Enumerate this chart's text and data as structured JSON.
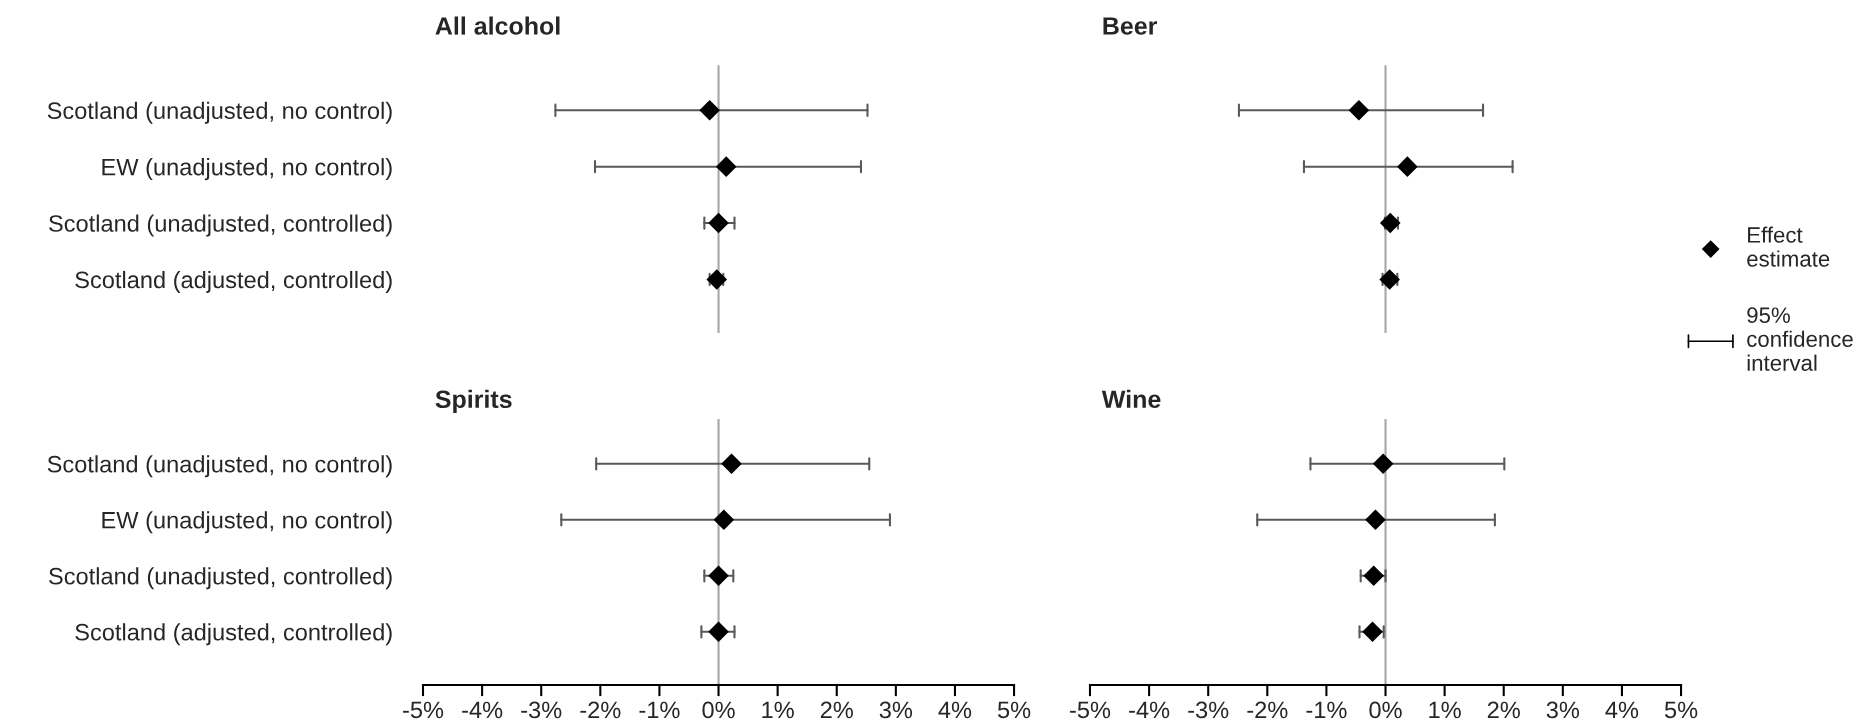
{
  "chart_data": [
    {
      "type": "scatter",
      "title": "All alcohol",
      "orientation": "horizontal",
      "categories": [
        "Scotland (unadjusted, no control)",
        "EW (unadjusted, no control)",
        "Scotland (unadjusted, controlled)",
        "Scotland (adjusted, controlled)"
      ],
      "tick_labels": "y",
      "marker": "diamond",
      "xlim": [
        -5,
        5
      ],
      "series": [
        {
          "color": "#000000",
          "values": [
            -0.15,
            0.13,
            0,
            -0.03
          ],
          "errors": [
            [
              -2.76,
              2.52
            ],
            [
              -2.09,
              2.41
            ],
            [
              -0.24,
              0.27
            ],
            [
              -0.15,
              0.08
            ]
          ]
        }
      ],
      "ref_lines": [
        {
          "axis": "x",
          "value": 0,
          "color": "#a6a6a6"
        }
      ]
    },
    {
      "type": "scatter",
      "title": "Beer",
      "orientation": "horizontal",
      "categories": [
        null,
        null,
        null,
        null
      ],
      "tick_labels": false,
      "marker": "diamond",
      "xlim": [
        -5,
        5
      ],
      "legend": "right",
      "series": [
        {
          "name": "Effect estimate",
          "color": "#000000",
          "values": [
            -0.45,
            0.37,
            0.08,
            0.07
          ],
          "errors": [
            [
              -2.48,
              1.65
            ],
            [
              -1.38,
              2.15
            ],
            [
              -0.01,
              0.21
            ],
            [
              -0.05,
              0.2
            ]
          ]
        }
      ],
      "annotations": [
        "95% confidence interval"
      ],
      "ref_lines": [
        {
          "axis": "x",
          "value": 0,
          "color": "#a6a6a6"
        }
      ]
    },
    {
      "type": "scatter",
      "title": "Spirits",
      "orientation": "horizontal",
      "categories": [
        "Scotland (unadjusted, no control)",
        "EW (unadjusted, no control)",
        "Scotland (unadjusted, controlled)",
        "Scotland (adjusted, controlled)"
      ],
      "marker": "diamond",
      "xlim": [
        -5,
        5
      ],
      "xticks": [
        {
          "value": -5,
          "label": "-5%"
        },
        {
          "value": -4,
          "label": "-4%"
        },
        {
          "value": -3,
          "label": "-3%"
        },
        {
          "value": -2,
          "label": "-2%"
        },
        {
          "value": -1,
          "label": "-1%"
        },
        {
          "value": 0,
          "label": "0%"
        },
        {
          "value": 1,
          "label": "1%"
        },
        {
          "value": 2,
          "label": "2%"
        },
        {
          "value": 3,
          "label": "3%"
        },
        {
          "value": 4,
          "label": "4%"
        },
        {
          "value": 5,
          "label": "5%"
        }
      ],
      "series": [
        {
          "color": "#000000",
          "values": [
            0.22,
            0.09,
            0,
            0
          ],
          "errors": [
            [
              -2.07,
              2.55
            ],
            [
              -2.66,
              2.9
            ],
            [
              -0.24,
              0.25
            ],
            [
              -0.29,
              0.27
            ]
          ]
        }
      ],
      "ref_lines": [
        {
          "axis": "x",
          "value": 0,
          "color": "#a6a6a6"
        }
      ]
    },
    {
      "type": "scatter",
      "title": "Wine",
      "orientation": "horizontal",
      "categories": [
        null,
        null,
        null,
        null
      ],
      "tick_labels": "x",
      "marker": "diamond",
      "xlim": [
        -5,
        5
      ],
      "xticks": [
        {
          "value": -5,
          "label": "-5%"
        },
        {
          "value": -4,
          "label": "-4%"
        },
        {
          "value": -3,
          "label": "-3%"
        },
        {
          "value": -2,
          "label": "-2%"
        },
        {
          "value": -1,
          "label": "-1%"
        },
        {
          "value": 0,
          "label": "0%"
        },
        {
          "value": 1,
          "label": "1%"
        },
        {
          "value": 2,
          "label": "2%"
        },
        {
          "value": 3,
          "label": "3%"
        },
        {
          "value": 4,
          "label": "4%"
        },
        {
          "value": 5,
          "label": "5%"
        }
      ],
      "series": [
        {
          "color": "#000000",
          "values": [
            -0.04,
            -0.17,
            -0.2,
            -0.22
          ],
          "errors": [
            [
              -1.27,
              2.01
            ],
            [
              -2.17,
              1.85
            ],
            [
              -0.42,
              0
            ],
            [
              -0.44,
              -0.03
            ]
          ]
        }
      ],
      "ref_lines": [
        {
          "axis": "x",
          "value": 0,
          "color": "#a6a6a6"
        }
      ]
    }
  ]
}
